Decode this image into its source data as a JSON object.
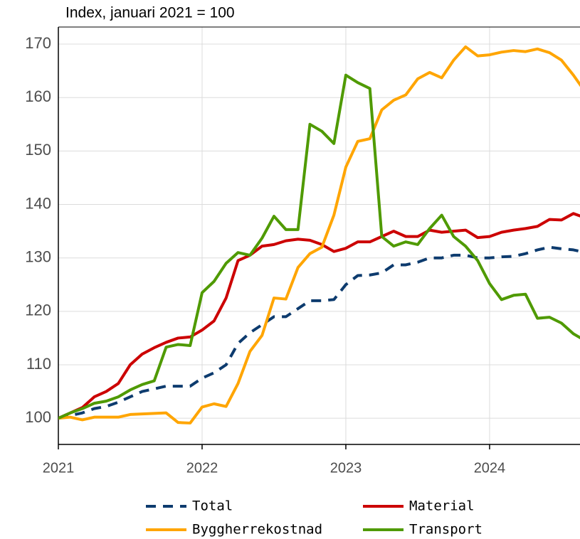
{
  "chart_data": {
    "type": "line",
    "subtitle": "Index, januari 2021 = 100",
    "x": [
      2021,
      2021.083,
      2021.167,
      2021.25,
      2021.333,
      2021.417,
      2021.5,
      2021.583,
      2021.667,
      2021.75,
      2021.833,
      2021.917,
      2022,
      2022.083,
      2022.167,
      2022.25,
      2022.333,
      2022.417,
      2022.5,
      2022.583,
      2022.667,
      2022.75,
      2022.833,
      2022.917,
      2023,
      2023.083,
      2023.167,
      2023.25,
      2023.333,
      2023.417,
      2023.5,
      2023.583,
      2023.667,
      2023.75,
      2023.833,
      2023.917,
      2024,
      2024.083,
      2024.167,
      2024.25,
      2024.333,
      2024.417,
      2024.5,
      2024.583,
      2024.667
    ],
    "series": [
      {
        "name": "Total",
        "color": "#0d3b6e",
        "dashed": true,
        "values": [
          100,
          100.5,
          101,
          101.8,
          102.2,
          103,
          104,
          105,
          105.5,
          106,
          106,
          106,
          107.5,
          108.5,
          110,
          114,
          116,
          117.5,
          119,
          119,
          120.5,
          122,
          122,
          122.2,
          125,
          126.7,
          126.8,
          127.2,
          128.7,
          128.7,
          129.2,
          130,
          130,
          130.5,
          130.5,
          130,
          130,
          130.2,
          130.3,
          130.8,
          131.5,
          132,
          131.7,
          131.5,
          131
        ]
      },
      {
        "name": "Material",
        "color": "#cc0000",
        "dashed": false,
        "values": [
          100,
          101,
          102,
          104,
          105,
          106.5,
          110,
          112,
          113.2,
          114.2,
          115,
          115.2,
          116.5,
          118.2,
          122.5,
          129.5,
          130.5,
          132.2,
          132.5,
          133.2,
          133.5,
          133.3,
          132.5,
          131.2,
          131.8,
          133,
          133,
          134,
          135,
          134,
          134,
          135.2,
          134.8,
          135,
          135.2,
          133.8,
          134,
          134.8,
          135.2,
          135.5,
          135.9,
          137.2,
          137.1,
          138.3,
          137.5
        ]
      },
      {
        "name": "Byggherrekostnad",
        "color": "#ffa500",
        "dashed": false,
        "values": [
          100,
          100.2,
          99.7,
          100.2,
          100.2,
          100.2,
          100.7,
          100.8,
          100.9,
          101,
          99.2,
          99.1,
          102.1,
          102.7,
          102.2,
          106.5,
          112.5,
          115.5,
          122.5,
          122.3,
          128.2,
          130.8,
          132,
          138,
          147,
          151.8,
          152.3,
          157.7,
          159.5,
          160.5,
          163.5,
          164.7,
          163.7,
          167,
          169.5,
          167.8,
          168,
          168.5,
          168.8,
          168.6,
          169.1,
          168.4,
          167,
          164.2,
          161
        ]
      },
      {
        "name": "Transport",
        "color": "#4f9a00",
        "dashed": false,
        "values": [
          100,
          101,
          101.8,
          102.8,
          103.2,
          104,
          105.3,
          106.3,
          107,
          113.3,
          113.8,
          113.6,
          123.5,
          125.6,
          129,
          131,
          130.5,
          133.7,
          137.8,
          135.3,
          135.3,
          155,
          153.7,
          151.4,
          164.2,
          162.8,
          161.7,
          134,
          132.2,
          133,
          132.5,
          135.5,
          138,
          134,
          132.2,
          129.5,
          125.2,
          122.2,
          123,
          123.2,
          118.7,
          118.9,
          117.8,
          115.8,
          114.5
        ]
      }
    ],
    "xlim": [
      2021,
      2024.629
    ],
    "xticks": [
      2021,
      2022,
      2023,
      2024
    ],
    "ylim": [
      95.1,
      173.2
    ],
    "yticks": [
      100,
      110,
      120,
      130,
      140,
      150,
      160,
      170
    ],
    "grid": true,
    "legend_position": "bottom"
  }
}
